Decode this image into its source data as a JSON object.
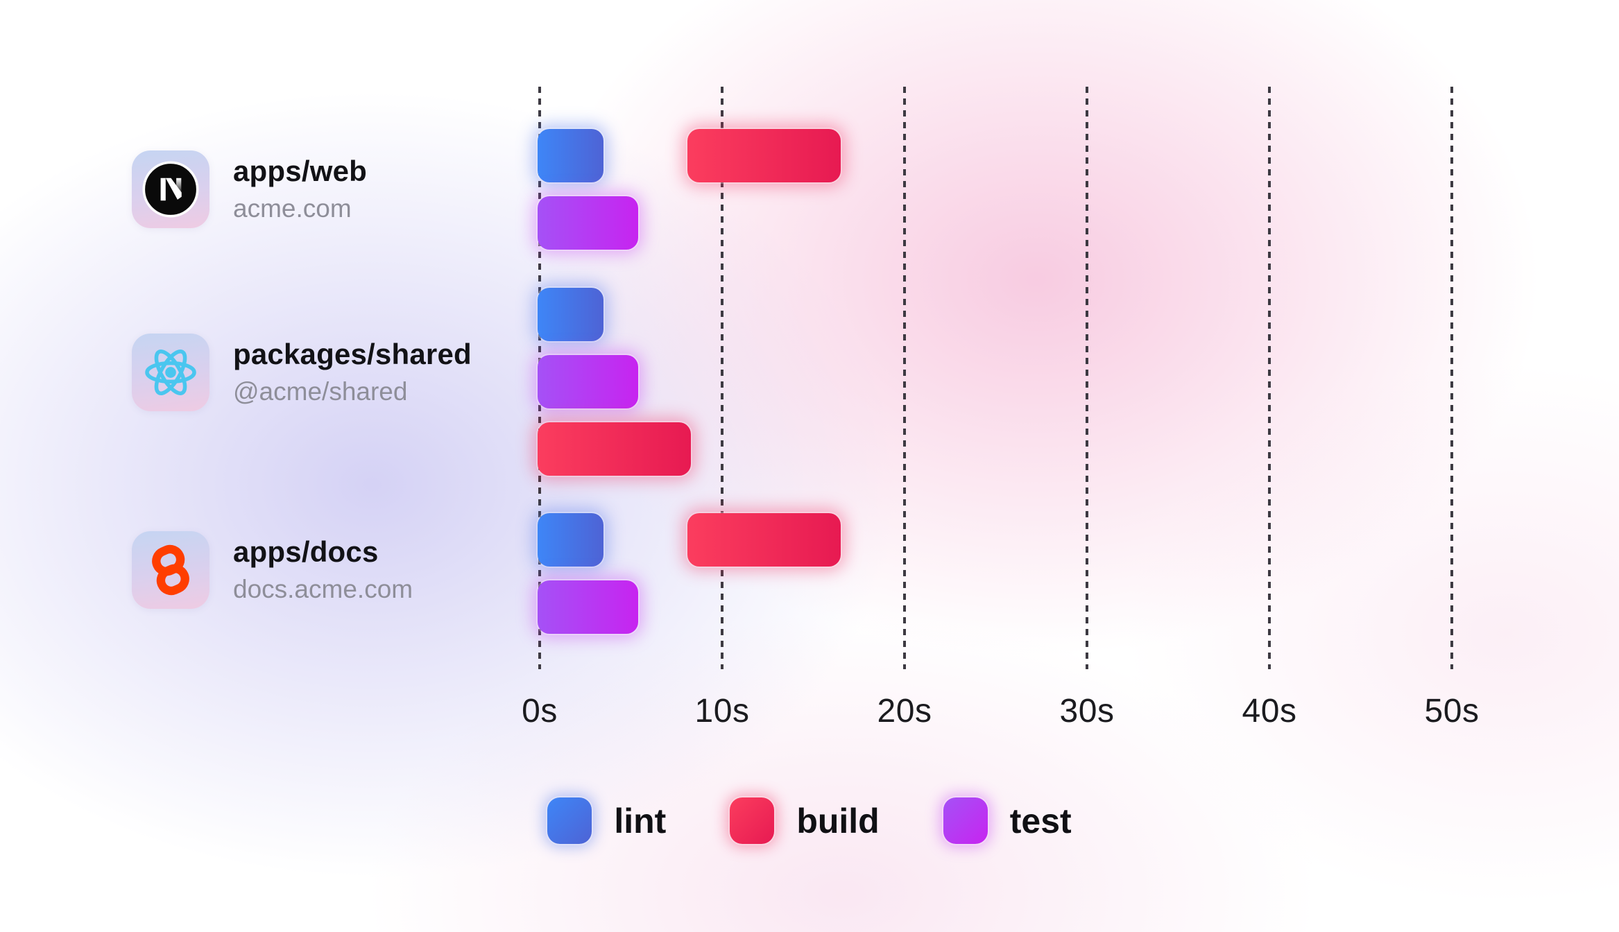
{
  "chart_data": {
    "type": "gantt",
    "title": "",
    "x_axis": {
      "unit": "seconds",
      "xlim": [
        0,
        53
      ],
      "ticks": [
        {
          "label": "0s",
          "value": 0
        },
        {
          "label": "10s",
          "value": 10
        },
        {
          "label": "20s",
          "value": 20
        },
        {
          "label": "30s",
          "value": 30
        },
        {
          "label": "40s",
          "value": 40
        },
        {
          "label": "50s",
          "value": 50
        }
      ]
    },
    "grid": "dashed-vertical-lines",
    "legend": {
      "position": "bottom-center",
      "items": [
        "lint",
        "build",
        "test"
      ]
    },
    "task_colors": {
      "lint": {
        "from": "#3e86f7",
        "to": "#4e63d5",
        "glow": "rgba(90,125,235,0.45)"
      },
      "build": {
        "from": "#fb3d5e",
        "to": "#e71a52",
        "glow": "rgba(240,45,95,0.40)"
      },
      "test": {
        "from": "#a551f6",
        "to": "#c724f0",
        "glow": "rgba(195,60,240,0.40)"
      }
    },
    "rows": [
      {
        "package": "apps/web",
        "domain": "acme.com",
        "icon": "nextjs-icon",
        "tasks": [
          {
            "task": "lint",
            "start_s": 0,
            "end_s": 3.6,
            "lane": 0
          },
          {
            "task": "build",
            "start_s": 8.2,
            "end_s": 16.6,
            "lane": 0
          },
          {
            "task": "test",
            "start_s": 0,
            "end_s": 5.5,
            "lane": 1
          }
        ]
      },
      {
        "package": "packages/shared",
        "domain": "@acme/shared",
        "icon": "react-icon",
        "tasks": [
          {
            "task": "lint",
            "start_s": 0,
            "end_s": 3.6,
            "lane": 0
          },
          {
            "task": "test",
            "start_s": 0,
            "end_s": 5.5,
            "lane": 1
          },
          {
            "task": "build",
            "start_s": 0,
            "end_s": 8.4,
            "lane": 2
          }
        ]
      },
      {
        "package": "apps/docs",
        "domain": "docs.acme.com",
        "icon": "svelte-icon",
        "tasks": [
          {
            "task": "lint",
            "start_s": 0,
            "end_s": 3.6,
            "lane": 0
          },
          {
            "task": "build",
            "start_s": 8.2,
            "end_s": 16.6,
            "lane": 0
          },
          {
            "task": "test",
            "start_s": 0,
            "end_s": 5.5,
            "lane": 1
          }
        ]
      }
    ],
    "accent_colors": {
      "nextjs_black": "#0a0a0a",
      "react_cyan": "#4ac6ef",
      "svelte_orange": "#ff3e00",
      "gridline_gray": "#3d3a42",
      "axis_text": "#1b1b1f",
      "title_text": "#121216",
      "subtitle_text": "#8e8e99"
    }
  }
}
